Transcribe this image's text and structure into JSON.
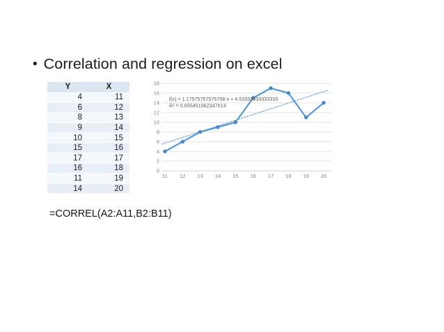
{
  "slide": {
    "bullet": "•",
    "title": "Correlation and regression on excel",
    "formula": "=CORREL(A2:A11,B2:B11)"
  },
  "table": {
    "headers": [
      "Y",
      "X"
    ],
    "rows": [
      [
        4,
        11
      ],
      [
        6,
        12
      ],
      [
        8,
        13
      ],
      [
        9,
        14
      ],
      [
        10,
        15
      ],
      [
        15,
        16
      ],
      [
        17,
        17
      ],
      [
        16,
        18
      ],
      [
        11,
        19
      ],
      [
        14,
        20
      ]
    ]
  },
  "chart_data": {
    "type": "line",
    "x": [
      "11",
      "12",
      "13",
      "14",
      "15",
      "16",
      "17",
      "18",
      "19",
      "20"
    ],
    "series": [
      {
        "name": "Y",
        "values": [
          4,
          6,
          8,
          9,
          10,
          15,
          17,
          16,
          11,
          14
        ]
      }
    ],
    "trendline": {
      "slope": 1.17575757575758,
      "intercept": 4.53333333333333,
      "equation_label": "f(x) = 1.17575757575758 x + 4.53333333333333",
      "r_squared_label": "R² = 0.655451062347614"
    },
    "title": "",
    "xlabel": "",
    "ylabel": "",
    "ylim": [
      0,
      18
    ],
    "ytick_step": 2,
    "grid": true,
    "legend": "none",
    "colors": {
      "series_line": "#5b9bd5",
      "marker": "#4a86c5",
      "trendline": "#6ea2d9",
      "gridline": "#d9d9d9",
      "axis_line": "#bfbfbf",
      "tick_text": "#7f7f7f",
      "equation_text": "#595959"
    }
  }
}
